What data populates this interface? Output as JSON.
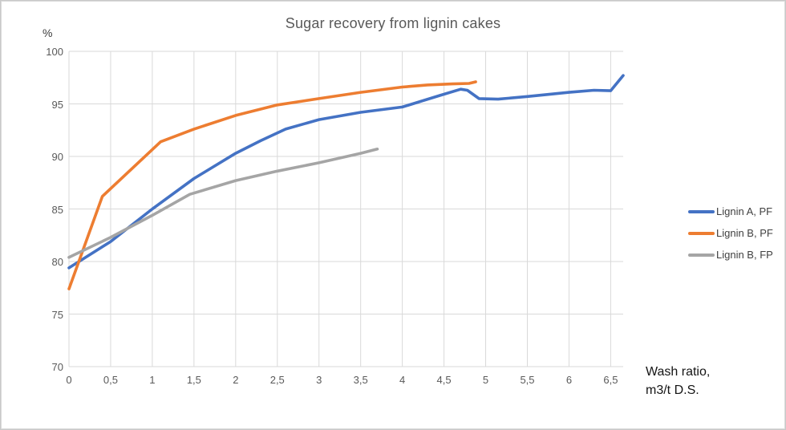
{
  "frame": {
    "background": "#ffffff",
    "border_color": "#d9d9d9"
  },
  "chart_data": {
    "type": "line",
    "title": "Sugar recovery from lignin cakes",
    "y_unit_label": "%",
    "x_axis_title_line1": "Wash ratio,",
    "x_axis_title_line2": "m3/t D.S.",
    "xlabel": "Wash ratio, m3/t D.S.",
    "ylabel": "%",
    "xlim": [
      0,
      6.65
    ],
    "ylim": [
      70,
      100
    ],
    "grid": true,
    "legend_position": "right",
    "gridline_color": "#d9d9d9",
    "tick_color": "#595959",
    "title_color": "#595959",
    "x_ticks": [
      {
        "value": 0,
        "label": "0"
      },
      {
        "value": 0.5,
        "label": "0,5"
      },
      {
        "value": 1,
        "label": "1"
      },
      {
        "value": 1.5,
        "label": "1,5"
      },
      {
        "value": 2,
        "label": "2"
      },
      {
        "value": 2.5,
        "label": "2,5"
      },
      {
        "value": 3,
        "label": "3"
      },
      {
        "value": 3.5,
        "label": "3,5"
      },
      {
        "value": 4,
        "label": "4"
      },
      {
        "value": 4.5,
        "label": "4,5"
      },
      {
        "value": 5,
        "label": "5"
      },
      {
        "value": 5.5,
        "label": "5,5"
      },
      {
        "value": 6,
        "label": "6"
      },
      {
        "value": 6.5,
        "label": "6,5"
      }
    ],
    "y_ticks": [
      {
        "value": 100,
        "label": "100"
      },
      {
        "value": 95,
        "label": "95"
      },
      {
        "value": 90,
        "label": "90"
      },
      {
        "value": 85,
        "label": "85"
      },
      {
        "value": 80,
        "label": "80"
      },
      {
        "value": 75,
        "label": "75"
      },
      {
        "value": 70,
        "label": "70"
      }
    ],
    "series": [
      {
        "name": "Lignin A, PF",
        "color": "#4472C4",
        "points": [
          [
            0,
            79.4
          ],
          [
            0.5,
            81.9
          ],
          [
            1,
            85.0
          ],
          [
            1.5,
            87.9
          ],
          [
            2,
            90.3
          ],
          [
            2.3,
            91.5
          ],
          [
            2.6,
            92.6
          ],
          [
            3,
            93.5
          ],
          [
            3.5,
            94.2
          ],
          [
            4,
            94.7
          ],
          [
            4.45,
            95.8
          ],
          [
            4.7,
            96.4
          ],
          [
            4.78,
            96.3
          ],
          [
            4.92,
            95.5
          ],
          [
            5.15,
            95.45
          ],
          [
            5.5,
            95.7
          ],
          [
            6,
            96.1
          ],
          [
            6.3,
            96.3
          ],
          [
            6.5,
            96.25
          ],
          [
            6.65,
            97.7
          ]
        ]
      },
      {
        "name": "Lignin B, PF",
        "color": "#ED7D31",
        "points": [
          [
            0,
            77.4
          ],
          [
            0.4,
            86.2
          ],
          [
            1.1,
            91.4
          ],
          [
            1.5,
            92.6
          ],
          [
            2,
            93.9
          ],
          [
            2.5,
            94.9
          ],
          [
            3,
            95.5
          ],
          [
            3.5,
            96.1
          ],
          [
            4,
            96.6
          ],
          [
            4.3,
            96.8
          ],
          [
            4.6,
            96.9
          ],
          [
            4.8,
            96.95
          ],
          [
            4.88,
            97.1
          ]
        ]
      },
      {
        "name": "Lignin B, FP",
        "color": "#A5A5A5",
        "points": [
          [
            0,
            80.4
          ],
          [
            0.5,
            82.3
          ],
          [
            1,
            84.4
          ],
          [
            1.45,
            86.4
          ],
          [
            2,
            87.7
          ],
          [
            2.5,
            88.6
          ],
          [
            3,
            89.4
          ],
          [
            3.5,
            90.3
          ],
          [
            3.7,
            90.7
          ]
        ]
      }
    ]
  }
}
